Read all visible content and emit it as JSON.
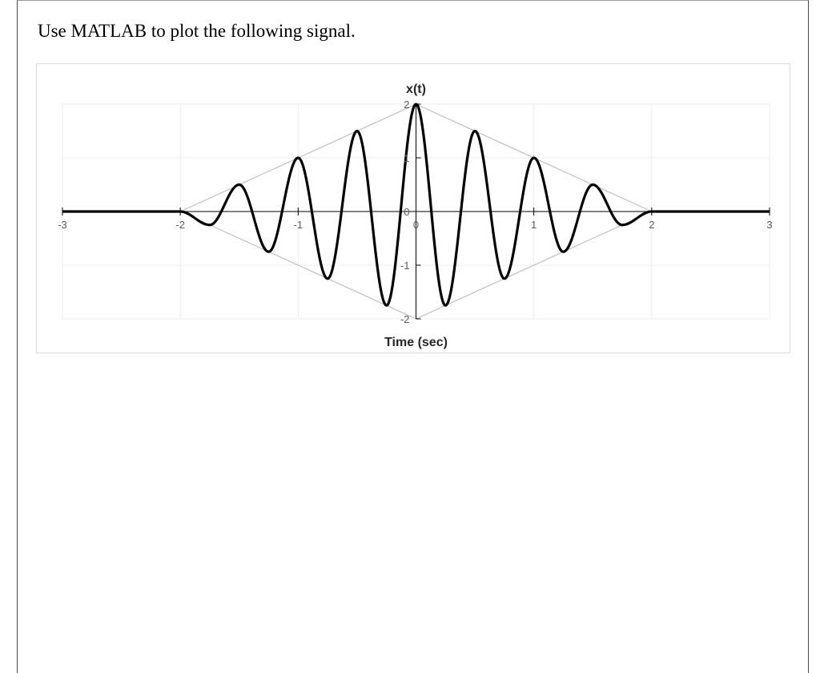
{
  "question": {
    "text": "Use MATLAB to plot the following signal."
  },
  "colors": {
    "signal": "#000000",
    "envelope": "#bfbfbf",
    "gridline": "#ececec",
    "axis": "#000000"
  },
  "chart_data": {
    "type": "line",
    "title": "",
    "xlabel": "Time (sec)",
    "ylabel": "x(t)",
    "xlim": [
      -3,
      3
    ],
    "ylim": [
      -2,
      2
    ],
    "x_ticks": [
      -3,
      -2,
      -1,
      0,
      1,
      2,
      3
    ],
    "x_tick_labels": [
      "-3",
      "-2",
      "-1",
      "0",
      "1",
      "2",
      "3"
    ],
    "y_ticks": [
      -2,
      -1,
      0,
      1,
      2
    ],
    "y_tick_labels": [
      "-2",
      "-1",
      "0",
      "1",
      "2"
    ],
    "grid": true,
    "legend": "none",
    "series": [
      {
        "x": [
          -3,
          -2,
          -1.75,
          -1.5,
          -1.25,
          -1,
          -0.75,
          -0.5,
          -0.25,
          0,
          0.25,
          0.5,
          0.75,
          1,
          1.25,
          1.5,
          1.75,
          2,
          3
        ],
        "values": [
          0,
          0,
          -0.25,
          0.5,
          -0.75,
          1,
          -1.25,
          1.5,
          -1.75,
          2,
          -1.75,
          1.5,
          -1.25,
          1,
          -0.75,
          0.5,
          -0.25,
          0,
          0
        ],
        "style": "thick black oscillation"
      },
      {
        "x": [
          -2,
          0,
          2
        ],
        "values": [
          0,
          2,
          0
        ],
        "style": "thin gray envelope"
      },
      {
        "x": [
          -2,
          0,
          2
        ],
        "values": [
          0,
          -2,
          0
        ],
        "style": "thin gray envelope"
      }
    ]
  }
}
